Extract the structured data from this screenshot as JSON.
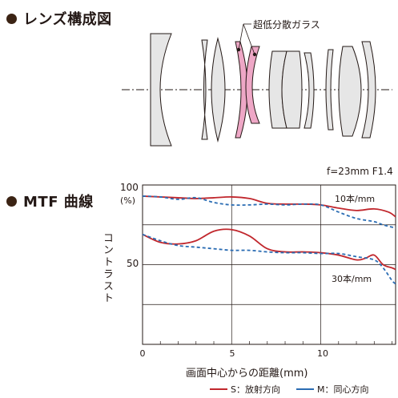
{
  "lens_section": {
    "title": "レンズ構成図",
    "ed_glass_label": "超低分散ガラス"
  },
  "mtf_section": {
    "title": "MTF 曲線",
    "spec": "f=23mm F1.4",
    "y_unit": "(%)",
    "y_label": "コントラスト",
    "x_label": "画面中心からの距離(mm)",
    "curve_labels": {
      "high": "10本/mm",
      "low": "30本/mm"
    },
    "legend": {
      "s_label": "S：放射方向",
      "m_label": "M：同心方向"
    }
  },
  "colors": {
    "sagittal": "#c1272d",
    "meridional": "#2a6cb3",
    "lens_fill": "#e6e6e6",
    "ed_fill": "#eea7c6"
  },
  "chart_data": {
    "type": "line",
    "title": "MTF 曲線",
    "xlabel": "画面中心からの距離(mm)",
    "ylabel": "コントラスト",
    "xlim": [
      0,
      14.2
    ],
    "ylim": [
      0,
      100
    ],
    "x_ticks": [
      "0",
      "5",
      "10"
    ],
    "y_ticks": [
      "50",
      "100"
    ],
    "grid": true,
    "series": [
      {
        "name": "S：放射方向",
        "group": "10本/mm",
        "style": "solid",
        "x": [
          0,
          1,
          2,
          3,
          4,
          5,
          6,
          7,
          8,
          9,
          10,
          11,
          12,
          13,
          13.8,
          14.2
        ],
        "y": [
          93,
          92.5,
          92,
          91.5,
          92,
          92.5,
          91.5,
          88.5,
          88,
          88,
          87.5,
          85.5,
          84,
          85,
          83,
          80
        ]
      },
      {
        "name": "M：同心方向",
        "group": "10本/mm",
        "style": "dashed",
        "x": [
          0,
          1,
          2,
          3,
          4,
          5,
          6,
          7,
          8,
          9,
          10,
          11,
          12,
          13,
          13.5,
          14.2
        ],
        "y": [
          93,
          92.5,
          91,
          92,
          89,
          87.5,
          87.5,
          88,
          87.5,
          88,
          87.5,
          83,
          79,
          77,
          75,
          73
        ]
      },
      {
        "name": "S：放射方向",
        "group": "30本/mm",
        "style": "solid",
        "x": [
          0,
          1,
          2,
          3,
          4,
          5,
          6,
          7,
          8,
          9,
          10,
          11,
          12,
          12.5,
          13,
          13.5,
          14,
          14.2
        ],
        "y": [
          69,
          64,
          63,
          65,
          71,
          72,
          68,
          60,
          58,
          58,
          57.5,
          56,
          53,
          54,
          56,
          50,
          48,
          47
        ]
      },
      {
        "name": "M：同心方向",
        "group": "30本/mm",
        "style": "dashed",
        "x": [
          0,
          1,
          2,
          3,
          4,
          5,
          6,
          7,
          8,
          9,
          10,
          11,
          12,
          13,
          13.5,
          14,
          14.2
        ],
        "y": [
          69,
          65,
          62,
          61,
          60,
          59,
          59,
          58,
          57.5,
          57.5,
          57,
          57,
          55,
          53,
          48,
          40,
          38
        ]
      }
    ]
  }
}
